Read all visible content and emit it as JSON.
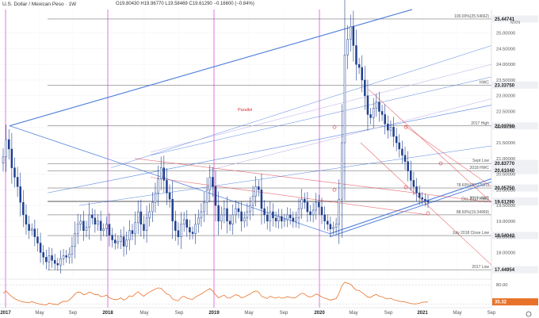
{
  "header": {
    "symbol": "U.S. Dollar / Mexican Peso · 1W",
    "ohlc": "O19.80430 H19.96770 L19.58469 C19.61290 −0.16600 (−0.84%)"
  },
  "colors": {
    "up": "#1e3f8f",
    "down": "#1e3f8f",
    "channel": "#3a6fd8",
    "slope_red": "#e0303a",
    "magenta": "#d63ad6",
    "level_line": "#555555",
    "rsi": "#e8722a",
    "label_bg": "#eef0f4"
  },
  "chart_data": {
    "type": "candlestick",
    "currency_label": "MXN",
    "ylim": [
      17.2,
      25.75
    ],
    "x_ticks": [
      "2017",
      "May",
      "Sep",
      "2018",
      "May",
      "Sep",
      "2019",
      "May",
      "Sep",
      "2020",
      "May",
      "Sep",
      "2021",
      "May",
      "Sep"
    ],
    "y_ticks": [
      "18.00000",
      "18.50000",
      "19.00000",
      "19.50000",
      "20.00000",
      "20.50000",
      "21.00000",
      "21.50000",
      "22.00000",
      "22.50000",
      "23.00000",
      "23.50000",
      "24.00000",
      "24.50000",
      "25.00000"
    ],
    "levels": [
      {
        "value": 25.44741,
        "label": "25.44741",
        "note": "100.00%(25.54662)"
      },
      {
        "value": 23.3375,
        "label": "23.33750",
        "note": "HWC"
      },
      {
        "value": 22.0376,
        "label": "22.03760",
        "note": "2017 High"
      },
      {
        "value": 20.8377,
        "label": "20.83770",
        "note": "Sept Low"
      },
      {
        "value": 20.6104,
        "label": "20.61040",
        "note": "2018 HWC"
      },
      {
        "value": 20.0575,
        "label": "20.05750",
        "note": "78.60%(20.07621)"
      },
      {
        "value": 19.6402,
        "label": "19.64023",
        "note": "2019 HWC"
      },
      {
        "value": 19.6129,
        "label": "19.61290",
        "note": "Dec 2017 HWC"
      },
      {
        "value": 19.2,
        "label": "",
        "note": "88.60%(19.34969)"
      },
      {
        "value": 18.5404,
        "label": "18.54042",
        "note": "July 2018 Close Low"
      },
      {
        "value": 17.4495,
        "label": "17.44954",
        "note": "2017 Low"
      }
    ],
    "annotations": [
      "Parallel"
    ],
    "closes": [
      21.05,
      21.6,
      21.3,
      20.7,
      20.4,
      20.1,
      19.6,
      19.2,
      18.9,
      18.7,
      18.75,
      18.5,
      18.3,
      18.0,
      17.85,
      17.7,
      17.9,
      17.75,
      17.65,
      17.6,
      17.8,
      17.9,
      17.85,
      17.95,
      18.2,
      18.6,
      18.9,
      19.0,
      18.7,
      18.8,
      19.2,
      19.1,
      18.9,
      19.0,
      18.7,
      18.75,
      18.9,
      18.55,
      18.4,
      18.3,
      18.35,
      18.5,
      18.2,
      18.4,
      18.7,
      18.6,
      18.95,
      19.3,
      18.9,
      18.7,
      19.1,
      19.3,
      19.6,
      19.9,
      20.35,
      20.7,
      20.3,
      19.9,
      19.7,
      19.0,
      18.7,
      18.5,
      18.9,
      19.05,
      18.8,
      18.65,
      18.6,
      18.9,
      19.1,
      19.3,
      19.6,
      20.0,
      20.4,
      20.1,
      19.5,
      19.0,
      19.2,
      19.4,
      19.0,
      18.9,
      19.2,
      19.4,
      19.3,
      19.0,
      19.1,
      19.3,
      19.5,
      19.8,
      20.1,
      20.0,
      19.4,
      19.2,
      19.0,
      19.3,
      19.1,
      19.0,
      19.15,
      19.0,
      19.05,
      19.2,
      19.1,
      19.0,
      19.1,
      19.4,
      19.7,
      19.6,
      19.3,
      19.2,
      19.35,
      19.6,
      19.45,
      19.2,
      19.0,
      18.9,
      18.75,
      18.8,
      18.9,
      19.7,
      21.5,
      24.3,
      24.8,
      25.2,
      24.6,
      24.0,
      23.9,
      23.5,
      23.0,
      22.4,
      22.3,
      22.6,
      22.8,
      22.5,
      22.4,
      22.1,
      21.9,
      22.0,
      21.7,
      21.5,
      21.3,
      21.1,
      20.9,
      20.6,
      20.3,
      20.1,
      19.9,
      19.75,
      19.7,
      19.65,
      19.6
    ],
    "rsi_ticks": [
      "80.00",
      "35.32"
    ],
    "rsi_series": [
      58,
      64,
      56,
      49,
      44,
      40,
      37,
      35,
      34,
      33,
      36,
      33,
      31,
      29,
      28,
      27,
      32,
      30,
      29,
      28,
      33,
      37,
      36,
      40,
      47,
      56,
      61,
      60,
      54,
      56,
      61,
      58,
      54,
      55,
      49,
      50,
      53,
      46,
      43,
      41,
      42,
      46,
      40,
      44,
      51,
      49,
      56,
      62,
      55,
      50,
      57,
      61,
      65,
      69,
      72,
      71,
      63,
      56,
      53,
      43,
      40,
      38,
      47,
      50,
      45,
      43,
      42,
      48,
      52,
      56,
      61,
      66,
      70,
      64,
      54,
      46,
      50,
      53,
      46,
      45,
      50,
      54,
      52,
      46,
      48,
      52,
      56,
      61,
      64,
      61,
      50,
      47,
      44,
      50,
      47,
      45,
      48,
      45,
      46,
      49,
      47,
      45,
      47,
      53,
      58,
      56,
      50,
      48,
      51,
      56,
      53,
      48,
      45,
      43,
      40,
      42,
      44,
      58,
      78,
      87,
      84,
      82,
      73,
      66,
      65,
      60,
      54,
      48,
      47,
      52,
      55,
      50,
      49,
      45,
      43,
      45,
      41,
      39,
      37,
      36,
      35,
      33,
      31,
      30,
      30,
      32,
      34,
      35,
      35
    ]
  }
}
